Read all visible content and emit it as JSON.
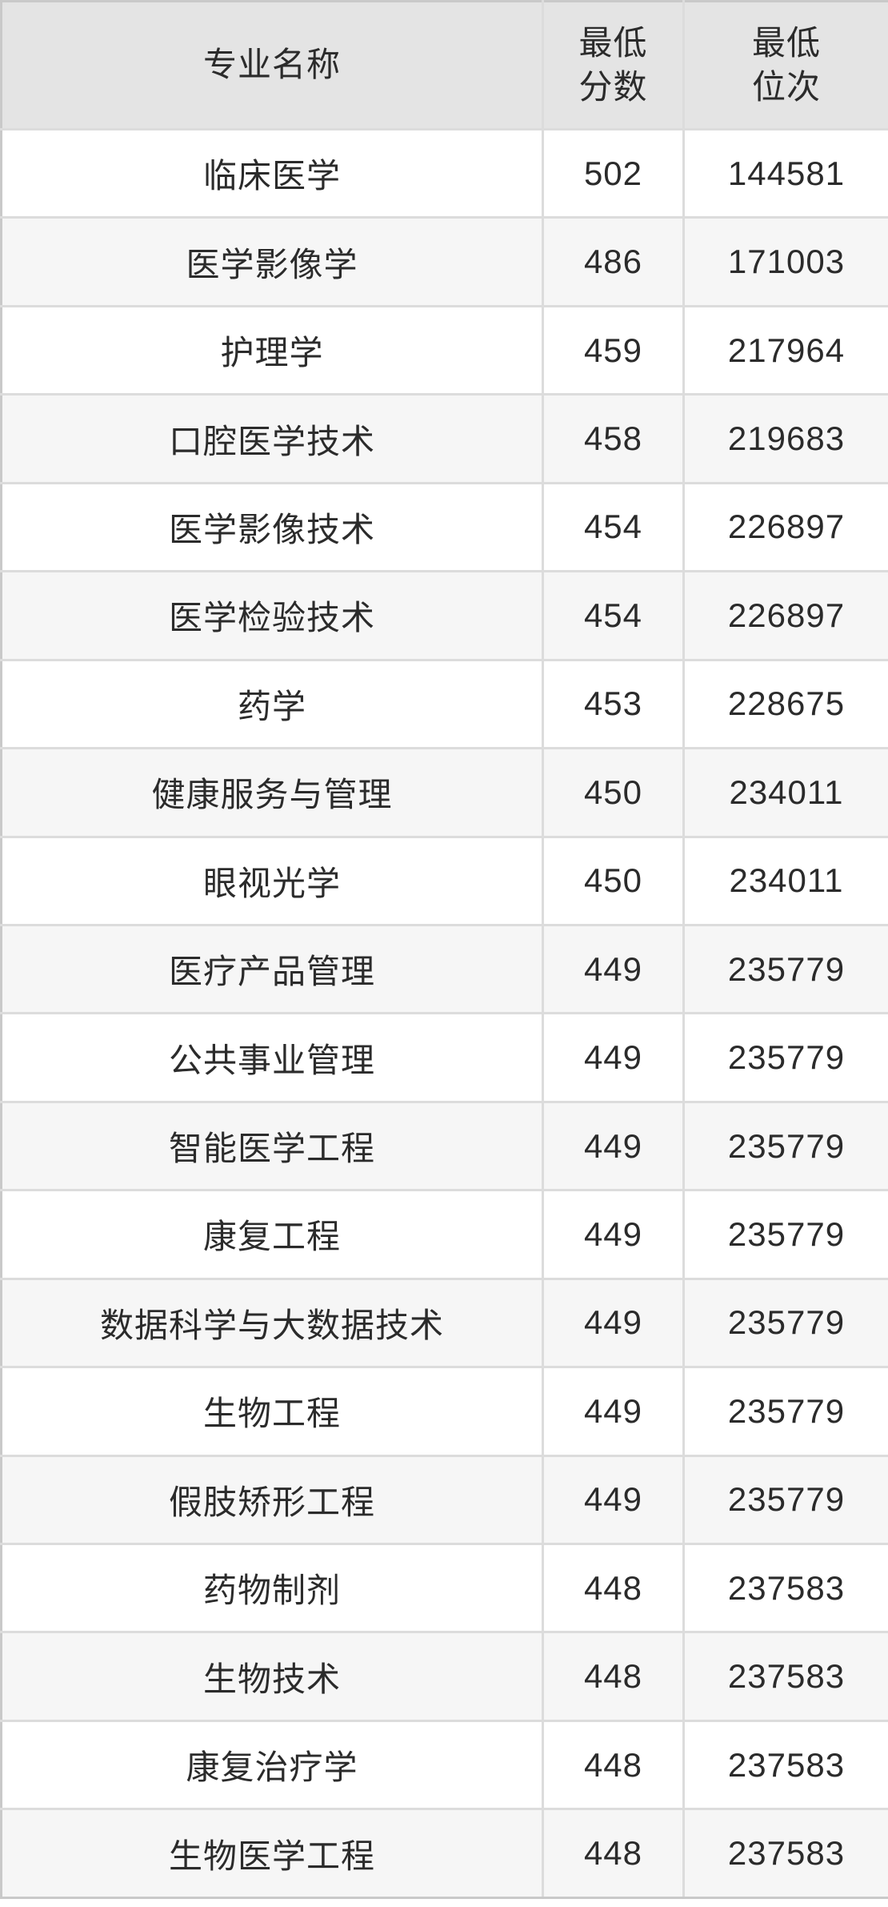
{
  "header": {
    "major": "专业名称",
    "min_score": "最低\n分数",
    "min_rank": "最低\n位次"
  },
  "rows": [
    {
      "major": "临床医学",
      "score": "502",
      "rank": "144581"
    },
    {
      "major": "医学影像学",
      "score": "486",
      "rank": "171003"
    },
    {
      "major": "护理学",
      "score": "459",
      "rank": "217964"
    },
    {
      "major": "口腔医学技术",
      "score": "458",
      "rank": "219683"
    },
    {
      "major": "医学影像技术",
      "score": "454",
      "rank": "226897"
    },
    {
      "major": "医学检验技术",
      "score": "454",
      "rank": "226897"
    },
    {
      "major": "药学",
      "score": "453",
      "rank": "228675"
    },
    {
      "major": "健康服务与管理",
      "score": "450",
      "rank": "234011"
    },
    {
      "major": "眼视光学",
      "score": "450",
      "rank": "234011"
    },
    {
      "major": "医疗产品管理",
      "score": "449",
      "rank": "235779"
    },
    {
      "major": "公共事业管理",
      "score": "449",
      "rank": "235779"
    },
    {
      "major": "智能医学工程",
      "score": "449",
      "rank": "235779"
    },
    {
      "major": "康复工程",
      "score": "449",
      "rank": "235779"
    },
    {
      "major": "数据科学与大数据技术",
      "score": "449",
      "rank": "235779"
    },
    {
      "major": "生物工程",
      "score": "449",
      "rank": "235779"
    },
    {
      "major": "假肢矫形工程",
      "score": "449",
      "rank": "235779"
    },
    {
      "major": "药物制剂",
      "score": "448",
      "rank": "237583"
    },
    {
      "major": "生物技术",
      "score": "448",
      "rank": "237583"
    },
    {
      "major": "康复治疗学",
      "score": "448",
      "rank": "237583"
    },
    {
      "major": "生物医学工程",
      "score": "448",
      "rank": "237583"
    }
  ],
  "colors": {
    "header_bg": "#e4e4e4",
    "row_bg": "#ffffff",
    "row_alt_bg": "#f6f6f6",
    "grid_border": "#dcdcdc",
    "outer_border": "#c9c9c9",
    "text": "#2b2b2b"
  },
  "chart_data": {
    "type": "table",
    "columns": [
      "专业名称",
      "最低分数",
      "最低位次"
    ],
    "rows": [
      [
        "临床医学",
        502,
        144581
      ],
      [
        "医学影像学",
        486,
        171003
      ],
      [
        "护理学",
        459,
        217964
      ],
      [
        "口腔医学技术",
        458,
        219683
      ],
      [
        "医学影像技术",
        454,
        226897
      ],
      [
        "医学检验技术",
        454,
        226897
      ],
      [
        "药学",
        453,
        228675
      ],
      [
        "健康服务与管理",
        450,
        234011
      ],
      [
        "眼视光学",
        450,
        234011
      ],
      [
        "医疗产品管理",
        449,
        235779
      ],
      [
        "公共事业管理",
        449,
        235779
      ],
      [
        "智能医学工程",
        449,
        235779
      ],
      [
        "康复工程",
        449,
        235779
      ],
      [
        "数据科学与大数据技术",
        449,
        235779
      ],
      [
        "生物工程",
        449,
        235779
      ],
      [
        "假肢矫形工程",
        449,
        235779
      ],
      [
        "药物制剂",
        448,
        237583
      ],
      [
        "生物技术",
        448,
        237583
      ],
      [
        "康复治疗学",
        448,
        237583
      ],
      [
        "生物医学工程",
        448,
        237583
      ]
    ]
  }
}
